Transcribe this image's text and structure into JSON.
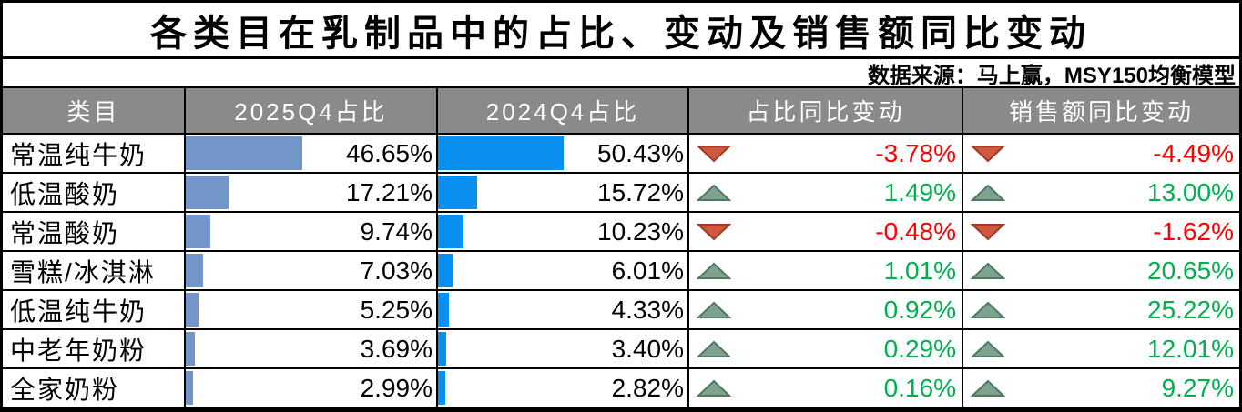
{
  "title": "各类目在乳制品中的占比、变动及销售额同比变动",
  "source_note": "数据来源：马上赢，MSY150均衡模型",
  "colors": {
    "bar_2025": "#7495c9",
    "bar_2024": "#0a90f0",
    "positive_text": "#00b050",
    "negative_text": "#ff0000",
    "up_triangle_fill": "#7fa28e",
    "up_triangle_border": "#4e7a63",
    "down_triangle_fill": "#d0583f",
    "down_triangle_border": "#9e3b28",
    "header_bg": "#8a8a8a",
    "header_text": "#ffffff"
  },
  "table": {
    "headers": {
      "category": "类目",
      "q2025": "2025Q4占比",
      "q2024": "2024Q4占比",
      "share_change": "占比同比变动",
      "sales_change": "销售额同比变动"
    },
    "rows": [
      {
        "name": "常温纯牛奶",
        "v2025": 46.65,
        "p2025": "46.65%",
        "v2024": 50.43,
        "p2024": "50.43%",
        "share_change": "-3.78%",
        "share_dir": "down",
        "sales_change": "-4.49%",
        "sales_dir": "down"
      },
      {
        "name": "低温酸奶",
        "v2025": 17.21,
        "p2025": "17.21%",
        "v2024": 15.72,
        "p2024": "15.72%",
        "share_change": "1.49%",
        "share_dir": "up",
        "sales_change": "13.00%",
        "sales_dir": "up"
      },
      {
        "name": "常温酸奶",
        "v2025": 9.74,
        "p2025": "9.74%",
        "v2024": 10.23,
        "p2024": "10.23%",
        "share_change": "-0.48%",
        "share_dir": "down",
        "sales_change": "-1.62%",
        "sales_dir": "down"
      },
      {
        "name": "雪糕/冰淇淋",
        "v2025": 7.03,
        "p2025": "7.03%",
        "v2024": 6.01,
        "p2024": "6.01%",
        "share_change": "1.01%",
        "share_dir": "up",
        "sales_change": "20.65%",
        "sales_dir": "up"
      },
      {
        "name": "低温纯牛奶",
        "v2025": 5.25,
        "p2025": "5.25%",
        "v2024": 4.33,
        "p2024": "4.33%",
        "share_change": "0.92%",
        "share_dir": "up",
        "sales_change": "25.22%",
        "sales_dir": "up"
      },
      {
        "name": "中老年奶粉",
        "v2025": 3.69,
        "p2025": "3.69%",
        "v2024": 3.4,
        "p2024": "3.40%",
        "share_change": "0.29%",
        "share_dir": "up",
        "sales_change": "12.01%",
        "sales_dir": "up"
      },
      {
        "name": "全家奶粉",
        "v2025": 2.99,
        "p2025": "2.99%",
        "v2024": 2.82,
        "p2024": "2.82%",
        "share_change": "0.16%",
        "share_dir": "up",
        "sales_change": "9.27%",
        "sales_dir": "up"
      }
    ]
  },
  "chart_data": {
    "type": "table",
    "title": "各类目在乳制品中的占比、变动及销售额同比变动",
    "source": "数据来源：马上赢，MSY150均衡模型",
    "columns": [
      "类目",
      "2025Q4占比",
      "2024Q4占比",
      "占比同比变动",
      "销售额同比变动"
    ],
    "categories": [
      "常温纯牛奶",
      "低温酸奶",
      "常温酸奶",
      "雪糕/冰淇淋",
      "低温纯牛奶",
      "中老年奶粉",
      "全家奶粉"
    ],
    "series": [
      {
        "name": "2025Q4占比",
        "values": [
          46.65,
          17.21,
          9.74,
          7.03,
          5.25,
          3.69,
          2.99
        ]
      },
      {
        "name": "2024Q4占比",
        "values": [
          50.43,
          15.72,
          10.23,
          6.01,
          4.33,
          3.4,
          2.82
        ]
      },
      {
        "name": "占比同比变动",
        "values": [
          -3.78,
          1.49,
          -0.48,
          1.01,
          0.92,
          0.29,
          0.16
        ]
      },
      {
        "name": "销售额同比变动",
        "values": [
          -4.49,
          13.0,
          -1.62,
          20.65,
          25.22,
          12.01,
          9.27
        ]
      }
    ],
    "layout": "embedded data bars drawn 0-100% scale; negative changes red with down triangle, positive green with up triangle"
  }
}
